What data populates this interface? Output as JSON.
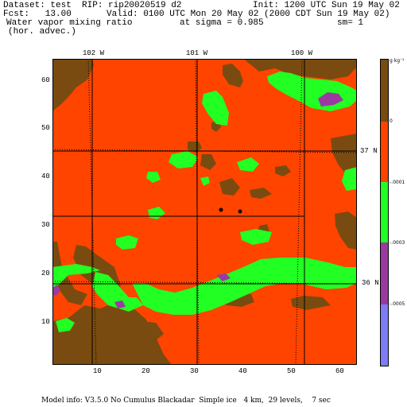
{
  "header": {
    "dataset": "Dataset: test  RIP: rip20020519 d2",
    "init": "Init: 1200 UTC Sun 19 May 02",
    "fcst": "Fcst:   13.00",
    "valid": "Valid: 0100 UTC Mon 20 May 02 (2000 CDT Sun 19 May 02)",
    "field": "Water vapor mixing ratio",
    "sigma": "at sigma = 0.985",
    "sm": "sm= 1",
    "advec": "(hor. advec.)"
  },
  "map": {
    "top_labels": [
      "102 W",
      "101 W",
      "100 W"
    ],
    "right_labels": [
      "37 N",
      "36 N"
    ],
    "x_ticks": [
      "10",
      "20",
      "30",
      "40",
      "50",
      "60"
    ],
    "y_ticks": [
      "60",
      "50",
      "40",
      "30",
      "20",
      "10"
    ]
  },
  "legend": {
    "top_label": "g kg⁻¹",
    "levels": [
      "0",
      "-.0001",
      "-.0003",
      "-.0005"
    ],
    "colors": {
      "brown": "#7a4b10",
      "orange": "#ff4400",
      "green": "#22ff22",
      "purple": "#9a3aa0",
      "blue": "#7c7cf4"
    }
  },
  "footer": {
    "model": "Model info: V3.5.0 No Cumulus Blackadar  Simple ice   4 km,  29 levels,    7 sec"
  }
}
